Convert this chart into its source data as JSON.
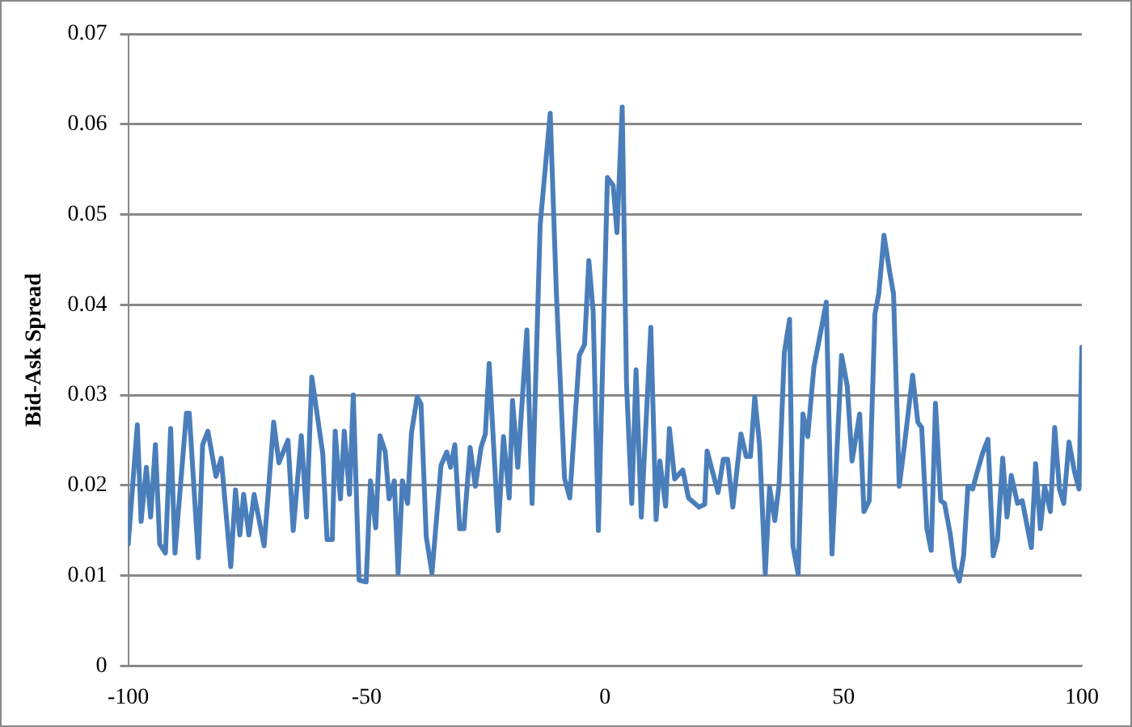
{
  "chart_data": {
    "type": "line",
    "ylabel": "Bid-Ask Spread",
    "x": [
      -100,
      -98.1,
      -97.3,
      -96.2,
      -95.3,
      -94.3,
      -93.4,
      -92.2,
      -91.1,
      -90.2,
      -87.8,
      -87.2,
      -85.3,
      -84.4,
      -83.3,
      -81.6,
      -80.5,
      -78.5,
      -77.5,
      -76.6,
      -75.8,
      -74.7,
      -73.6,
      -71.5,
      -69.5,
      -68.4,
      -66.5,
      -65.4,
      -63.7,
      -62.6,
      -61.5,
      -59.2,
      -58.3,
      -57.2,
      -56.6,
      -55.5,
      -54.7,
      -53.6,
      -52.8,
      -51.6,
      -50.1,
      -49.2,
      -48.1,
      -47.2,
      -46.1,
      -45.3,
      -44.2,
      -43.4,
      -42.5,
      -41.4,
      -40.6,
      -39.4,
      -38.6,
      -37.5,
      -36.3,
      -34.4,
      -33.2,
      -32.4,
      -31.5,
      -30.5,
      -29.6,
      -28.3,
      -27.2,
      -26,
      -25.1,
      -24.3,
      -22.4,
      -21.3,
      -20.1,
      -19.4,
      -18.3,
      -16.4,
      -15.3,
      -13.6,
      -11.5,
      -10.2,
      -8.5,
      -7.4,
      -5.4,
      -4.3,
      -3.4,
      -2.5,
      -1.4,
      0.5,
      1.7,
      2.5,
      3.6,
      4.5,
      5.6,
      6.5,
      7.6,
      9.6,
      10.7,
      11.5,
      12.7,
      13.5,
      14.6,
      16.3,
      17.5,
      19.7,
      20.9,
      21.4,
      23.7,
      24.8,
      25.7,
      26.8,
      28.5,
      29.6,
      30.5,
      31.4,
      32.4,
      33.6,
      34.5,
      35.6,
      36.5,
      37.6,
      38.7,
      39.4,
      40.5,
      41.5,
      42.5,
      43.8,
      45.3,
      46.4,
      47.6,
      49.6,
      50.8,
      51.8,
      53.4,
      54.3,
      55.4,
      56.6,
      57.4,
      58.5,
      59.7,
      60.5,
      61.7,
      62.8,
      64.5,
      65.6,
      66.4,
      67.5,
      68.4,
      69.3,
      70.4,
      71.2,
      72.4,
      73.3,
      74.3,
      75.2,
      76.1,
      77.1,
      78,
      79.2,
      80.3,
      81.4,
      82.3,
      83.4,
      84.3,
      85.2,
      86.5,
      87.5,
      89.4,
      90.3,
      91.3,
      92.2,
      93.4,
      94.3,
      95.3,
      96.2,
      97.3,
      98.5,
      99.4,
      100
    ],
    "series": [
      {
        "color": "#4a7ebb",
        "values": [
          0.0135,
          0.0267,
          0.016,
          0.022,
          0.0165,
          0.0245,
          0.0135,
          0.0125,
          0.0263,
          0.0125,
          0.028,
          0.028,
          0.012,
          0.0245,
          0.026,
          0.021,
          0.023,
          0.011,
          0.0195,
          0.0145,
          0.019,
          0.0145,
          0.019,
          0.0133,
          0.027,
          0.0225,
          0.025,
          0.015,
          0.0255,
          0.0165,
          0.032,
          0.0235,
          0.014,
          0.014,
          0.026,
          0.0185,
          0.026,
          0.019,
          0.03,
          0.0095,
          0.0093,
          0.0205,
          0.0153,
          0.0255,
          0.0237,
          0.0185,
          0.0205,
          0.0103,
          0.0205,
          0.018,
          0.0258,
          0.0298,
          0.029,
          0.0143,
          0.0103,
          0.0222,
          0.0237,
          0.022,
          0.0245,
          0.0152,
          0.0152,
          0.0242,
          0.0199,
          0.0242,
          0.0257,
          0.0335,
          0.015,
          0.0254,
          0.0186,
          0.0294,
          0.022,
          0.0372,
          0.018,
          0.0489,
          0.0612,
          0.0412,
          0.0208,
          0.0186,
          0.0344,
          0.0356,
          0.0449,
          0.0393,
          0.015,
          0.0541,
          0.0532,
          0.048,
          0.0619,
          0.0313,
          0.018,
          0.0328,
          0.0165,
          0.0375,
          0.0162,
          0.0227,
          0.0177,
          0.0263,
          0.0207,
          0.0217,
          0.0186,
          0.0176,
          0.0179,
          0.0238,
          0.0192,
          0.0229,
          0.0229,
          0.0176,
          0.0257,
          0.0232,
          0.0232,
          0.0298,
          0.0245,
          0.0102,
          0.0198,
          0.0161,
          0.0201,
          0.0347,
          0.0384,
          0.0133,
          0.0102,
          0.0279,
          0.0254,
          0.0331,
          0.0372,
          0.0403,
          0.0124,
          0.0344,
          0.031,
          0.0227,
          0.0279,
          0.0171,
          0.0183,
          0.039,
          0.0412,
          0.0477,
          0.0436,
          0.0412,
          0.0199,
          0.0245,
          0.0322,
          0.027,
          0.0264,
          0.0152,
          0.0128,
          0.0291,
          0.0183,
          0.018,
          0.0146,
          0.0109,
          0.0094,
          0.0122,
          0.0199,
          0.0196,
          0.0214,
          0.0236,
          0.0251,
          0.0122,
          0.014,
          0.023,
          0.0165,
          0.0211,
          0.018,
          0.0183,
          0.0131,
          0.0224,
          0.0152,
          0.0199,
          0.0171,
          0.0264,
          0.0196,
          0.018,
          0.0248,
          0.0214,
          0.0196,
          0.0353
        ]
      }
    ],
    "xlim": [
      -100,
      100
    ],
    "xticks": [
      -100,
      -50,
      0,
      50,
      100
    ],
    "ylim": [
      0,
      0.07
    ],
    "yticks": [
      0,
      0.01,
      0.02,
      0.03,
      0.04,
      0.05,
      0.06,
      0.07
    ],
    "grid": "y",
    "legend": false,
    "marker": "none",
    "line_style": "solid"
  }
}
